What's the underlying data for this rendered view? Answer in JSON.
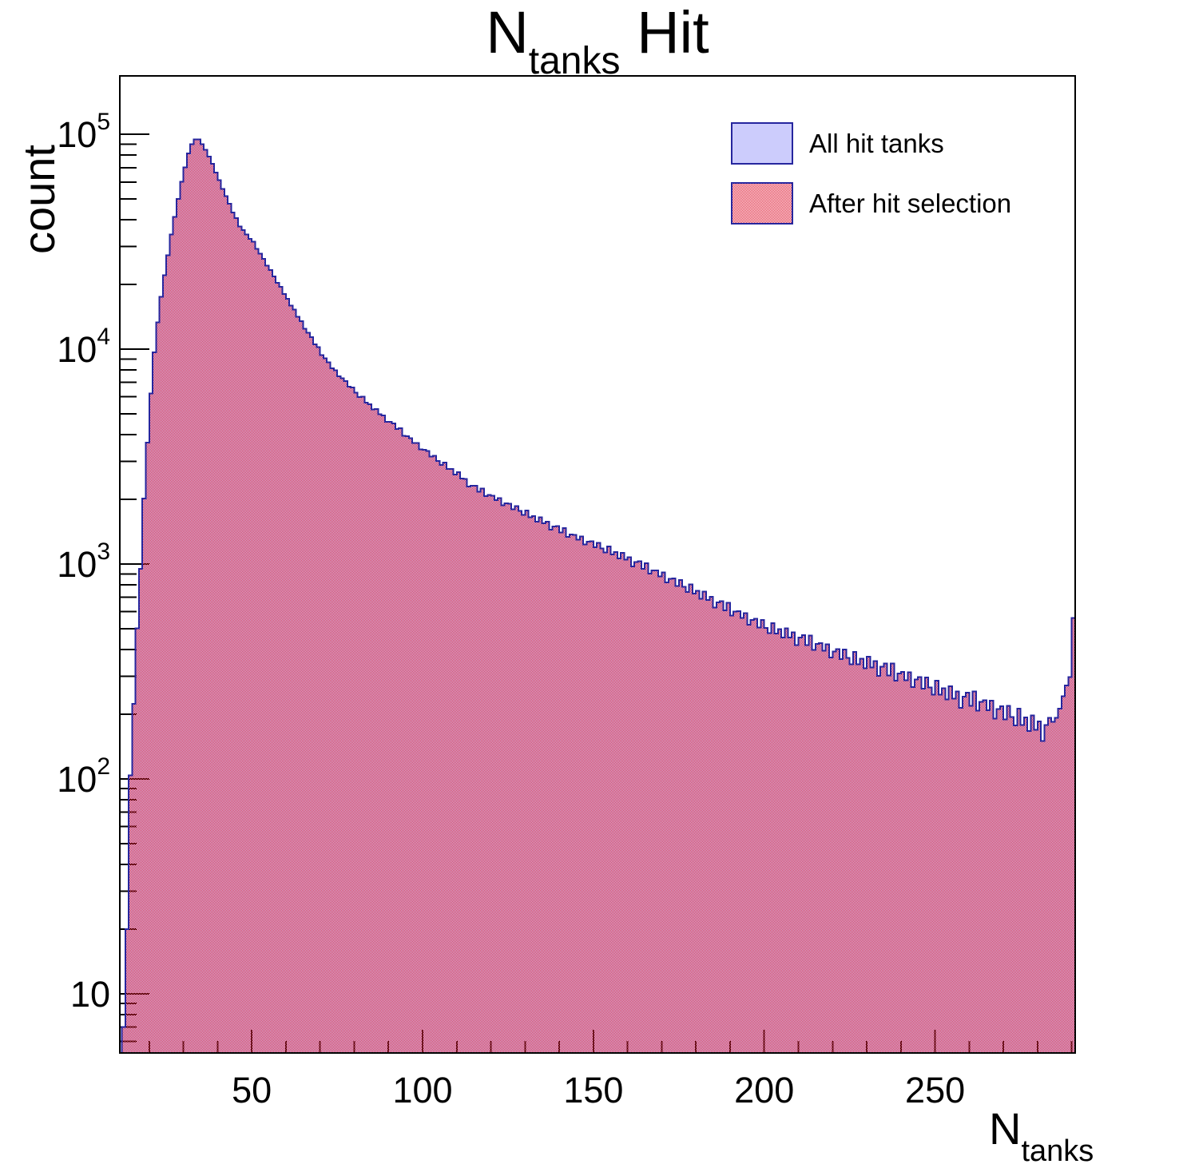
{
  "title": {
    "main": "N",
    "sub": "tanks",
    "rest": "Hit"
  },
  "y_axis_title": "count",
  "x_axis_title": {
    "main": "N",
    "sub": "tanks"
  },
  "legend": {
    "items": [
      {
        "label": "All hit tanks",
        "swatch": "solid-lavender"
      },
      {
        "label": "After hit selection",
        "swatch": "red-checker"
      }
    ]
  },
  "colors": {
    "histogram_fill_blue": "#ccccfc",
    "histogram_outline": "#26269e",
    "hatch_red": "#e02840",
    "frame": "#000000",
    "text": "#000000"
  },
  "chart_data": {
    "type": "bar",
    "subtype": "step-histogram-overlay",
    "title": "N_tanks Hit",
    "xlabel": "N_tanks",
    "ylabel": "count",
    "y_scale": "log10",
    "x_range": [
      11.4,
      291
    ],
    "y_range": [
      5.3,
      187000
    ],
    "x_ticks_major": [
      50,
      100,
      150,
      200,
      250
    ],
    "x_tick_minor_step": 10,
    "y_ticks_major": [
      10,
      100,
      1000,
      10000,
      100000
    ],
    "y_tick_labels": [
      {
        "base": "10",
        "exp": ""
      },
      {
        "base": "10",
        "exp": "2"
      },
      {
        "base": "10",
        "exp": "3"
      },
      {
        "base": "10",
        "exp": "4"
      },
      {
        "base": "10",
        "exp": "5"
      }
    ],
    "grid": false,
    "legend_position": "top-right",
    "bin_width": 1,
    "bins_start": 12,
    "bins_end": 290,
    "series": [
      {
        "name": "All hit tanks",
        "style": "solid",
        "fill": "#ccccfc",
        "line": "#26269e"
      },
      {
        "name": "After hit selection",
        "style": "checker",
        "fill": "#e02840",
        "line": "#26269e",
        "note": "coincides with All hit tanks at this resolution; drawn on top"
      }
    ],
    "profile_points": [
      [
        12,
        6
      ],
      [
        13,
        25
      ],
      [
        14,
        90
      ],
      [
        15,
        230
      ],
      [
        16,
        480
      ],
      [
        17,
        1000
      ],
      [
        18,
        2000
      ],
      [
        19,
        3600
      ],
      [
        20,
        6300
      ],
      [
        21,
        9500
      ],
      [
        22,
        13500
      ],
      [
        23,
        17500
      ],
      [
        24,
        22000
      ],
      [
        25,
        27500
      ],
      [
        26,
        34000
      ],
      [
        27,
        41500
      ],
      [
        28,
        50000
      ],
      [
        29,
        60000
      ],
      [
        30,
        70500
      ],
      [
        31,
        81000
      ],
      [
        32,
        90000
      ],
      [
        33,
        95000
      ],
      [
        34,
        94000
      ],
      [
        35,
        90000
      ],
      [
        36,
        84500
      ],
      [
        37,
        79000
      ],
      [
        38,
        72500
      ],
      [
        39,
        66500
      ],
      [
        40,
        61000
      ],
      [
        42,
        51500
      ],
      [
        44,
        43500
      ],
      [
        46,
        37500
      ],
      [
        48,
        34000
      ],
      [
        50,
        31500
      ],
      [
        52,
        27800
      ],
      [
        54,
        24600
      ],
      [
        56,
        21800
      ],
      [
        58,
        19300
      ],
      [
        60,
        17100
      ],
      [
        62,
        15100
      ],
      [
        64,
        13400
      ],
      [
        66,
        11900
      ],
      [
        68,
        10600
      ],
      [
        70,
        9500
      ],
      [
        73,
        8200
      ],
      [
        76,
        7300
      ],
      [
        80,
        6300
      ],
      [
        84,
        5500
      ],
      [
        88,
        4850
      ],
      [
        92,
        4300
      ],
      [
        96,
        3800
      ],
      [
        100,
        3400
      ],
      [
        105,
        2950
      ],
      [
        110,
        2600
      ],
      [
        114,
        2300
      ],
      [
        120,
        2050
      ],
      [
        126,
        1840
      ],
      [
        132,
        1650
      ],
      [
        138,
        1480
      ],
      [
        144,
        1340
      ],
      [
        150,
        1230
      ],
      [
        158,
        1080
      ],
      [
        164,
        975
      ],
      [
        170,
        880
      ],
      [
        176,
        790
      ],
      [
        182,
        705
      ],
      [
        188,
        630
      ],
      [
        194,
        565
      ],
      [
        200,
        510
      ],
      [
        207,
        465
      ],
      [
        214,
        425
      ],
      [
        220,
        390
      ],
      [
        226,
        360
      ],
      [
        232,
        335
      ],
      [
        238,
        310
      ],
      [
        244,
        288
      ],
      [
        250,
        262
      ],
      [
        256,
        240
      ],
      [
        262,
        228
      ],
      [
        267,
        212
      ],
      [
        271,
        200
      ],
      [
        275,
        188
      ],
      [
        278,
        178
      ],
      [
        281,
        170
      ],
      [
        283,
        176
      ],
      [
        285,
        192
      ],
      [
        286,
        212
      ],
      [
        287,
        242
      ],
      [
        288,
        272
      ],
      [
        289,
        298
      ],
      [
        290,
        560
      ]
    ],
    "noise": {
      "pattern": [
        0.5,
        -0.9,
        1.2,
        -0.4,
        0.8,
        -1.3,
        0.3,
        1.0,
        -0.7,
        1.4,
        -1.1,
        0.2,
        0.6,
        -0.5,
        0.9,
        -1.2,
        0.1,
        0.7,
        -0.8,
        1.1,
        -0.2,
        -1.0,
        1.3,
        -0.6
      ],
      "relative_scale": "1/sqrt(count)",
      "amplitude": 1.2,
      "max_n": 283
    }
  }
}
